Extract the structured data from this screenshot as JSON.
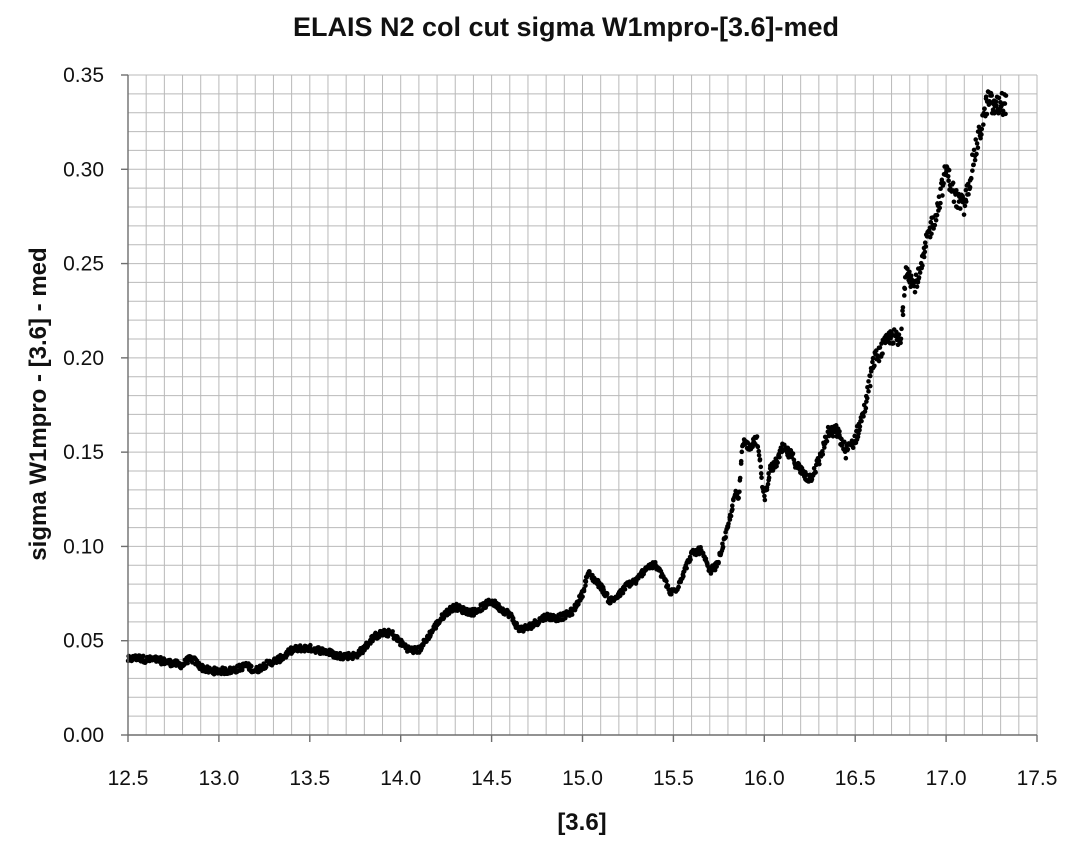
{
  "chart_data": {
    "type": "scatter",
    "title": "ELAIS N2 col cut sigma W1mpro-[3.6]-med",
    "xlabel": "[3.6]",
    "ylabel": "sigma W1mpro - [3.6] - med",
    "xlim": [
      12.5,
      17.5
    ],
    "ylim": [
      0.0,
      0.35
    ],
    "x_major_step": 0.5,
    "y_major_step": 0.05,
    "x_minor_step": 0.1,
    "y_minor_step": 0.01,
    "x_tick_labels": [
      "12.5",
      "13.0",
      "13.5",
      "14.0",
      "14.5",
      "15.0",
      "15.5",
      "16.0",
      "16.5",
      "17.0",
      "17.5"
    ],
    "y_tick_labels": [
      "0.00",
      "0.05",
      "0.10",
      "0.15",
      "0.20",
      "0.25",
      "0.30",
      "0.35"
    ],
    "grid": true,
    "legend": "none",
    "marker_color": "#000000",
    "trend": [
      [
        12.5,
        0.04
      ],
      [
        12.55,
        0.041
      ],
      [
        12.6,
        0.04
      ],
      [
        12.65,
        0.04
      ],
      [
        12.7,
        0.039
      ],
      [
        12.75,
        0.038
      ],
      [
        12.8,
        0.037
      ],
      [
        12.83,
        0.04
      ],
      [
        12.86,
        0.04
      ],
      [
        12.9,
        0.036
      ],
      [
        12.95,
        0.034
      ],
      [
        13.0,
        0.034
      ],
      [
        13.05,
        0.034
      ],
      [
        13.1,
        0.035
      ],
      [
        13.15,
        0.037
      ],
      [
        13.2,
        0.034
      ],
      [
        13.25,
        0.037
      ],
      [
        13.3,
        0.039
      ],
      [
        13.35,
        0.041
      ],
      [
        13.4,
        0.045
      ],
      [
        13.45,
        0.046
      ],
      [
        13.5,
        0.046
      ],
      [
        13.55,
        0.045
      ],
      [
        13.6,
        0.044
      ],
      [
        13.65,
        0.042
      ],
      [
        13.7,
        0.042
      ],
      [
        13.75,
        0.042
      ],
      [
        13.8,
        0.046
      ],
      [
        13.85,
        0.052
      ],
      [
        13.9,
        0.054
      ],
      [
        13.95,
        0.054
      ],
      [
        14.0,
        0.049
      ],
      [
        14.05,
        0.045
      ],
      [
        14.1,
        0.045
      ],
      [
        14.15,
        0.052
      ],
      [
        14.2,
        0.059
      ],
      [
        14.25,
        0.065
      ],
      [
        14.3,
        0.068
      ],
      [
        14.35,
        0.066
      ],
      [
        14.4,
        0.065
      ],
      [
        14.45,
        0.068
      ],
      [
        14.5,
        0.071
      ],
      [
        14.55,
        0.067
      ],
      [
        14.6,
        0.064
      ],
      [
        14.65,
        0.056
      ],
      [
        14.7,
        0.057
      ],
      [
        14.75,
        0.06
      ],
      [
        14.8,
        0.063
      ],
      [
        14.85,
        0.062
      ],
      [
        14.9,
        0.063
      ],
      [
        14.95,
        0.066
      ],
      [
        15.0,
        0.075
      ],
      [
        15.03,
        0.086
      ],
      [
        15.06,
        0.083
      ],
      [
        15.1,
        0.079
      ],
      [
        15.15,
        0.071
      ],
      [
        15.2,
        0.074
      ],
      [
        15.25,
        0.08
      ],
      [
        15.3,
        0.082
      ],
      [
        15.35,
        0.089
      ],
      [
        15.4,
        0.09
      ],
      [
        15.45,
        0.083
      ],
      [
        15.48,
        0.075
      ],
      [
        15.52,
        0.078
      ],
      [
        15.56,
        0.087
      ],
      [
        15.6,
        0.096
      ],
      [
        15.65,
        0.098
      ],
      [
        15.7,
        0.087
      ],
      [
        15.74,
        0.09
      ],
      [
        15.77,
        0.1
      ],
      [
        15.8,
        0.11
      ],
      [
        15.84,
        0.128
      ],
      [
        15.86,
        0.125
      ],
      [
        15.88,
        0.156
      ],
      [
        15.92,
        0.153
      ],
      [
        15.96,
        0.157
      ],
      [
        16.0,
        0.125
      ],
      [
        16.03,
        0.14
      ],
      [
        16.07,
        0.145
      ],
      [
        16.1,
        0.152
      ],
      [
        16.15,
        0.148
      ],
      [
        16.2,
        0.14
      ],
      [
        16.25,
        0.136
      ],
      [
        16.3,
        0.145
      ],
      [
        16.35,
        0.16
      ],
      [
        16.4,
        0.161
      ],
      [
        16.45,
        0.15
      ],
      [
        16.5,
        0.157
      ],
      [
        16.55,
        0.172
      ],
      [
        16.6,
        0.198
      ],
      [
        16.65,
        0.205
      ],
      [
        16.7,
        0.212
      ],
      [
        16.75,
        0.208
      ],
      [
        16.78,
        0.25
      ],
      [
        16.82,
        0.238
      ],
      [
        16.86,
        0.245
      ],
      [
        16.9,
        0.265
      ],
      [
        16.95,
        0.278
      ],
      [
        17.0,
        0.3
      ],
      [
        17.05,
        0.285
      ],
      [
        17.1,
        0.28
      ],
      [
        17.15,
        0.305
      ],
      [
        17.2,
        0.325
      ],
      [
        17.23,
        0.337
      ],
      [
        17.27,
        0.332
      ],
      [
        17.3,
        0.335
      ],
      [
        17.33,
        0.335
      ]
    ],
    "jitter": 0.0018,
    "point_count": 1600
  }
}
